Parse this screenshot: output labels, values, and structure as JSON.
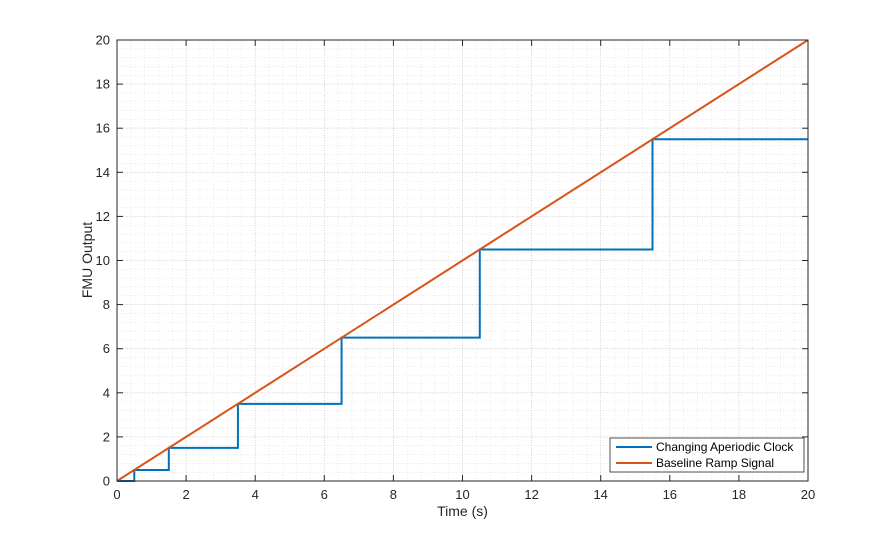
{
  "chart_data": {
    "type": "line",
    "title": "",
    "xlabel": "Time (s)",
    "ylabel": "FMU Output",
    "xlim": [
      0,
      20
    ],
    "ylim": [
      0,
      20
    ],
    "xticks": [
      0,
      2,
      4,
      6,
      8,
      10,
      12,
      14,
      16,
      18,
      20
    ],
    "yticks": [
      0,
      2,
      4,
      6,
      8,
      10,
      12,
      14,
      16,
      18,
      20
    ],
    "minor_step": 0.4,
    "grid": true,
    "legend_position": "bottom-right",
    "series": [
      {
        "name": "Changing Aperiodic Clock",
        "color": "#0072BD",
        "x": [
          0,
          0.5,
          0.5,
          1.5,
          1.5,
          3.5,
          3.5,
          6.5,
          6.5,
          10.5,
          10.5,
          15.5,
          15.5,
          20
        ],
        "y": [
          0,
          0,
          0.5,
          0.5,
          1.5,
          1.5,
          3.5,
          3.5,
          6.5,
          6.5,
          10.5,
          10.5,
          15.5,
          15.5
        ]
      },
      {
        "name": "Baseline Ramp Signal",
        "color": "#D95319",
        "x": [
          0,
          20
        ],
        "y": [
          0,
          20
        ]
      }
    ]
  }
}
